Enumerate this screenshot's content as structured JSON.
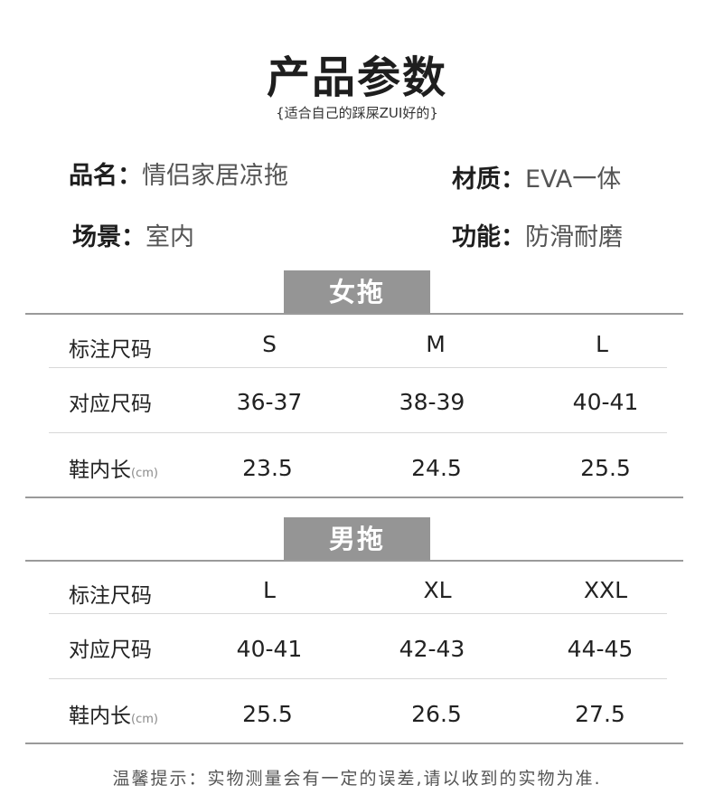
{
  "title": "产品参数",
  "subtitle": "{适合自己的踩屎ZUI好的}",
  "specs": {
    "name_key": "品名：",
    "name_val": "情侣家居凉拖",
    "material_key": "材质：",
    "material_val": "EVA一体",
    "scene_key": "场景：",
    "scene_val": "室内",
    "function_key": "功能：",
    "function_val": "防滑耐磨"
  },
  "women": {
    "banner": "女拖",
    "rows": [
      {
        "label": "标注尺码",
        "unit": "",
        "values": [
          "S",
          "M",
          "L"
        ]
      },
      {
        "label": "对应尺码",
        "unit": "",
        "values": [
          "36-37",
          "38-39",
          "40-41"
        ]
      },
      {
        "label": "鞋内长",
        "unit": "(cm)",
        "values": [
          "23.5",
          "24.5",
          "25.5"
        ]
      }
    ]
  },
  "men": {
    "banner": "男拖",
    "rows": [
      {
        "label": "标注尺码",
        "unit": "",
        "values": [
          "L",
          "XL",
          "XXL"
        ]
      },
      {
        "label": "对应尺码",
        "unit": "",
        "values": [
          "40-41",
          "42-43",
          "44-45"
        ]
      },
      {
        "label": "鞋内长",
        "unit": "(cm)",
        "values": [
          "25.5",
          "26.5",
          "27.5"
        ]
      }
    ]
  },
  "note": "温馨提示：实物测量会有一定的误差,请以收到的实物为准."
}
